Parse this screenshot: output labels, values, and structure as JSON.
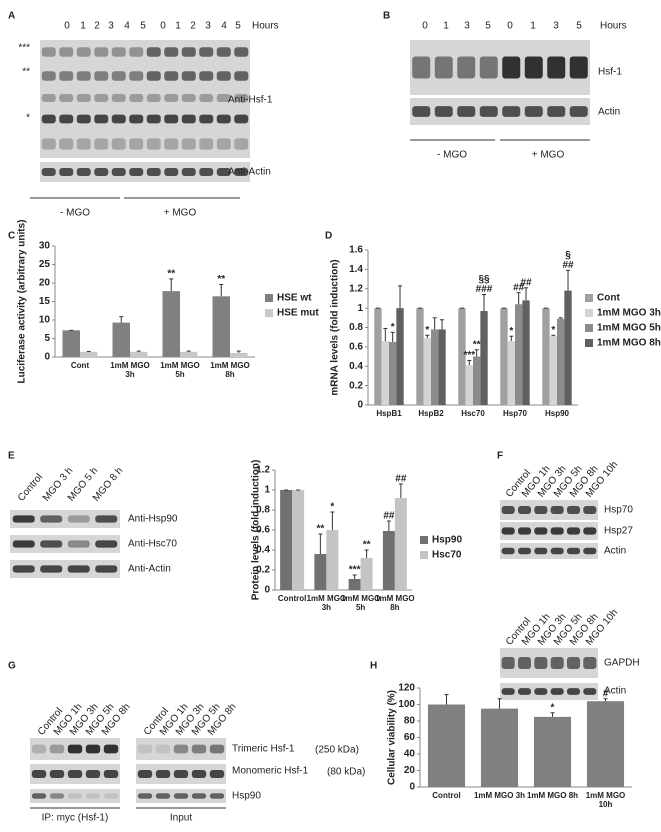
{
  "panels": [
    "A",
    "B",
    "C",
    "D",
    "E",
    "F",
    "G",
    "H"
  ],
  "blots": {
    "A": {
      "hours_label": "Hours",
      "hours": [
        0,
        1,
        2,
        3,
        4,
        5,
        0,
        1,
        2,
        3,
        4,
        5
      ],
      "markers": [
        "***",
        "**",
        "*"
      ],
      "rows": [
        "Anti-Hsf-1",
        "Anti-Actin"
      ],
      "groups": [
        "- MGO",
        "+ MGO"
      ]
    },
    "B": {
      "hours_label": "Hours",
      "hours": [
        0,
        1,
        3,
        5,
        0,
        1,
        3,
        5
      ],
      "rows": [
        "Hsf-1",
        "Actin"
      ],
      "groups": [
        "- MGO",
        "+ MGO"
      ]
    },
    "E": {
      "lanes": [
        "Control",
        "MGO 3 h",
        "MGO 5 h",
        "MGO 8 h"
      ],
      "rows": [
        "Anti-Hsp90",
        "Anti-Hsc70",
        "Anti-Actin"
      ]
    },
    "F": {
      "lanes": [
        "Control",
        "MGO 1h",
        "MGO 3h",
        "MGO 5h",
        "MGO 8h",
        "MGO 10h"
      ],
      "rows": [
        "Hsp70",
        "Hsp27",
        "Actin"
      ],
      "lanes_2": [
        "Control",
        "MGO 1h",
        "MGO 3h",
        "MGO 5h",
        "MGO 8h",
        "MGO 10h"
      ],
      "rows_2": [
        "GAPDH",
        "Actin"
      ]
    },
    "G": {
      "lanes": [
        "Control",
        "MGO 1h",
        "MGO 3h",
        "MGO 5h",
        "MGO 8h",
        "Control",
        "MGO 1h",
        "MGO 3h",
        "MGO 5h",
        "MGO 8h"
      ],
      "rows": [
        {
          "name": "Trimeric Hsf-1",
          "size": "(250 kDa)"
        },
        {
          "name": "Monomeric Hsf-1",
          "size": "(80 kDa)"
        },
        {
          "name": "Hsp90"
        }
      ],
      "groups": [
        "IP: myc (Hsf-1)",
        "Input"
      ]
    }
  },
  "chart_data": [
    {
      "type": "bar",
      "y_label": "Luciferase activity (arbitrary units)",
      "categories": [
        "Cont",
        "1mM MGO 3h",
        "1mM MGO 5h",
        "1mM MGO 8h"
      ],
      "series": [
        {
          "name": "HSE wt",
          "color": "#808080",
          "values": [
            7.2,
            9.3,
            17.8,
            16.4
          ],
          "errors": [
            0,
            1.6,
            3.3,
            3.2
          ]
        },
        {
          "name": "HSE mut",
          "color": "#c8c8c8",
          "values": [
            1.4,
            1.4,
            1.4,
            1.1
          ],
          "errors": [
            0.1,
            0.2,
            0.2,
            0.5
          ]
        }
      ],
      "ylim": [
        0,
        30
      ],
      "yticks": [
        0,
        5,
        10,
        15,
        20,
        25,
        30
      ],
      "legend": "right",
      "annotations": [
        {
          "text": "**",
          "category": "1mM MGO 5h",
          "series": "HSE wt"
        },
        {
          "text": "**",
          "category": "1mM MGO 8h",
          "series": "HSE wt"
        }
      ]
    },
    {
      "type": "bar",
      "y_label": "mRNA levels (fold induction)",
      "categories": [
        "HspB1",
        "HspB2",
        "Hsc70",
        "Hsp70",
        "Hsp90"
      ],
      "series": [
        {
          "name": "Cont",
          "color": "#a0a0a0",
          "values": [
            1,
            1,
            1,
            1,
            1
          ],
          "errors": [
            0,
            0,
            0,
            0,
            0
          ]
        },
        {
          "name": "1mM MGO 3h",
          "color": "#d4d4d4",
          "values": [
            0.66,
            0.69,
            0.41,
            0.66,
            0.71
          ],
          "errors": [
            0.13,
            0.03,
            0.05,
            0.05,
            0.01
          ]
        },
        {
          "name": "1mM MGO 5h",
          "color": "#8c8c8c",
          "values": [
            0.65,
            0.78,
            0.5,
            1.04,
            0.89
          ],
          "errors": [
            0.1,
            0.12,
            0.07,
            0.12,
            0.01
          ]
        },
        {
          "name": "1mM MGO 8h",
          "color": "#606060",
          "values": [
            1.0,
            0.78,
            0.97,
            1.08,
            1.18
          ],
          "errors": [
            0.23,
            0.1,
            0.17,
            0.13,
            0.21
          ]
        }
      ],
      "ylim": [
        0,
        1.6
      ],
      "yticks": [
        0,
        0.2,
        0.4,
        0.6,
        0.8,
        1,
        1.2,
        1.4,
        1.6
      ],
      "legend": "right",
      "annotations": [
        {
          "text": "*",
          "category": "HspB1",
          "series": "1mM MGO 5h"
        },
        {
          "text": "*",
          "category": "HspB2",
          "series": "1mM MGO 3h"
        },
        {
          "text": "***",
          "category": "Hsc70",
          "series": "1mM MGO 3h"
        },
        {
          "text": "**",
          "category": "Hsc70",
          "series": "1mM MGO 5h"
        },
        {
          "text": "###",
          "category": "Hsc70",
          "series": "1mM MGO 8h"
        },
        {
          "text": "§§",
          "category": "Hsc70",
          "series": "1mM MGO 8h"
        },
        {
          "text": "*",
          "category": "Hsp70",
          "series": "1mM MGO 3h"
        },
        {
          "text": "##",
          "category": "Hsp70",
          "series": "1mM MGO 5h"
        },
        {
          "text": "##",
          "category": "Hsp70",
          "series": "1mM MGO 8h"
        },
        {
          "text": "*",
          "category": "Hsp90",
          "series": "1mM MGO 3h"
        },
        {
          "text": "##",
          "category": "Hsp90",
          "series": "1mM MGO 8h"
        },
        {
          "text": "§",
          "category": "Hsp90",
          "series": "1mM MGO 8h"
        }
      ]
    },
    {
      "type": "bar",
      "y_label": "Protein levels (fold induction)",
      "categories": [
        "Control",
        "1mM MGO 3h",
        "1mM MGO 5h",
        "1mM MGO 8h"
      ],
      "series": [
        {
          "name": "Hsp90",
          "color": "#707070",
          "values": [
            1,
            0.36,
            0.11,
            0.59
          ],
          "errors": [
            0,
            0.2,
            0.04,
            0.1
          ]
        },
        {
          "name": "Hsc70",
          "color": "#c4c4c4",
          "values": [
            1,
            0.6,
            0.32,
            0.92
          ],
          "errors": [
            0,
            0.18,
            0.08,
            0.14
          ]
        }
      ],
      "ylim": [
        0,
        1.2
      ],
      "yticks": [
        0,
        0.2,
        0.4,
        0.6,
        0.8,
        1,
        1.2
      ],
      "legend": "right",
      "annotations": [
        {
          "text": "**",
          "category": "1mM MGO 3h",
          "series": "Hsp90"
        },
        {
          "text": "*",
          "category": "1mM MGO 3h",
          "series": "Hsc70"
        },
        {
          "text": "***",
          "category": "1mM MGO 5h",
          "series": "Hsp90"
        },
        {
          "text": "**",
          "category": "1mM MGO 5h",
          "series": "Hsc70"
        },
        {
          "text": "##",
          "category": "1mM MGO 8h",
          "series": "Hsp90"
        },
        {
          "text": "##",
          "category": "1mM MGO 8h",
          "series": "Hsc70"
        }
      ]
    },
    {
      "type": "bar",
      "y_label": "Cellular viability (%)",
      "categories": [
        "Control",
        "1mM MGO 3h",
        "1mM MGO 8h",
        "1mM MGO 10h"
      ],
      "values": [
        100,
        95,
        85,
        104
      ],
      "errors": [
        12,
        12,
        5,
        3
      ],
      "color": "#808080",
      "ylim": [
        0,
        120
      ],
      "yticks": [
        0,
        20,
        40,
        60,
        80,
        100,
        120
      ],
      "annotations": [
        {
          "text": "*",
          "category": "1mM MGO 8h"
        },
        {
          "text": "#",
          "category": "1mM MGO 10h"
        }
      ]
    }
  ]
}
